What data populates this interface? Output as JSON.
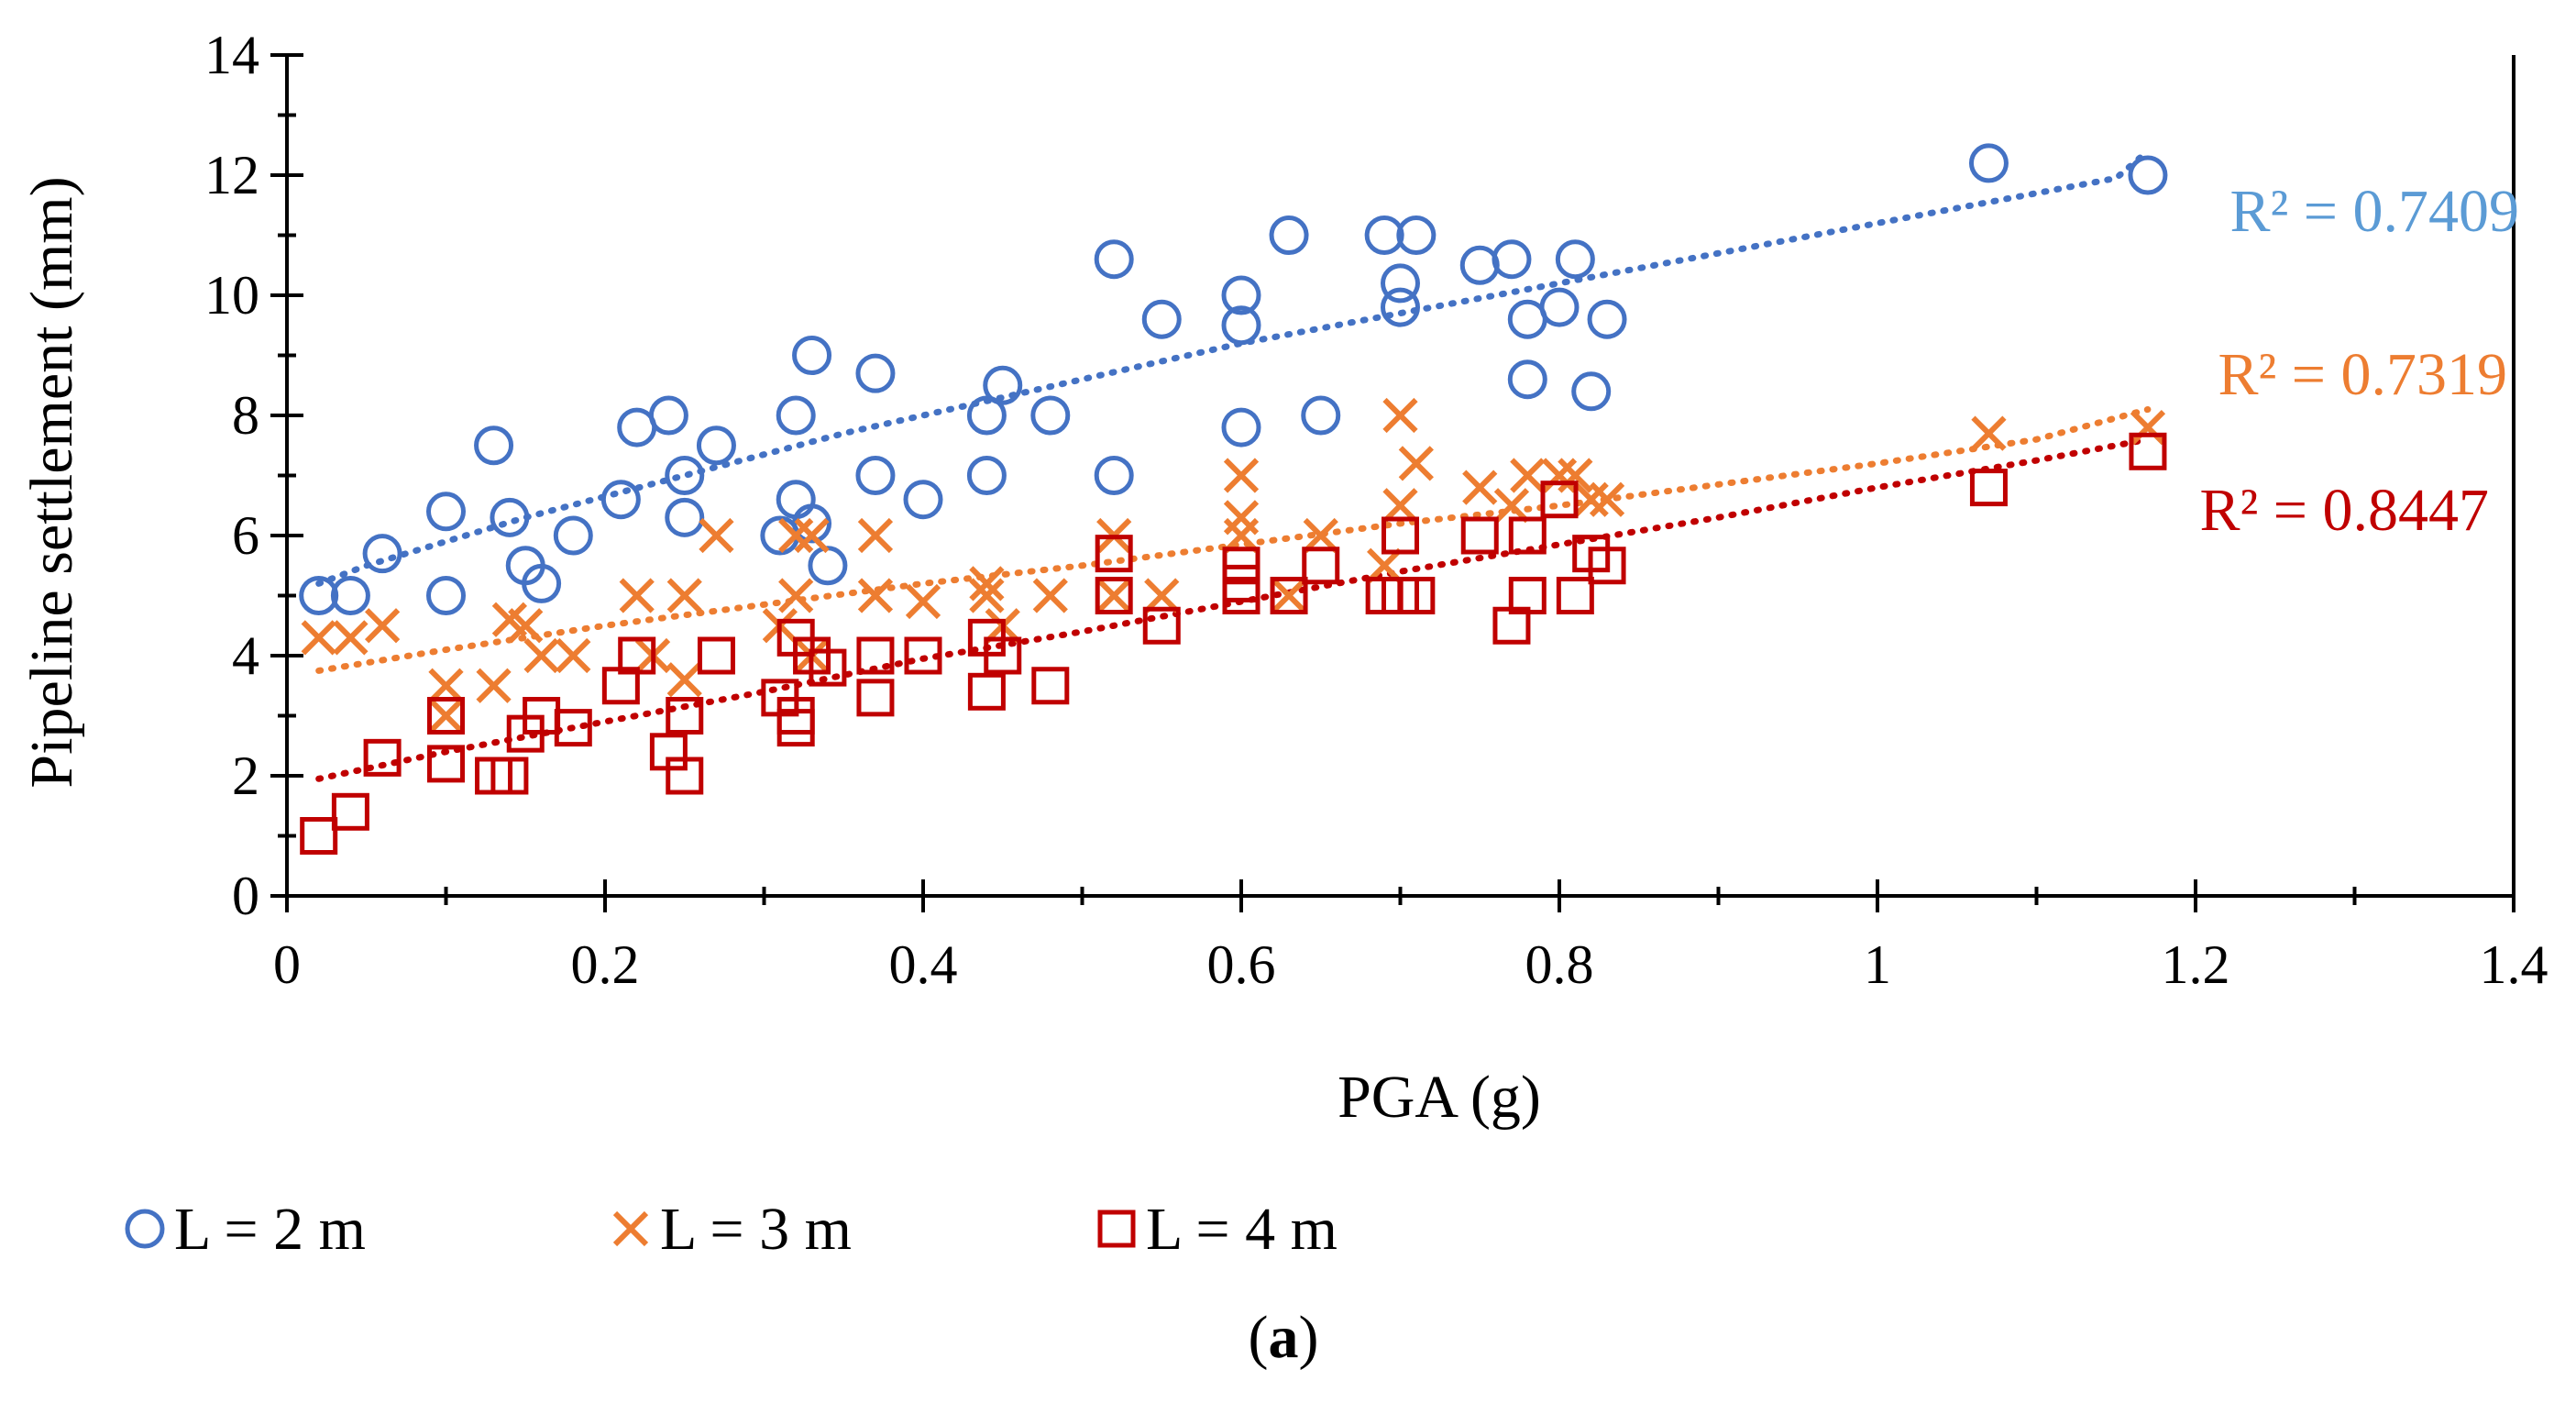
{
  "chart_data": {
    "type": "scatter",
    "title": "",
    "xlabel": "PGA (g)",
    "ylabel": "Pipeline settlement (mm)",
    "xlim": [
      0,
      1.4
    ],
    "ylim": [
      0,
      14
    ],
    "x_ticks": [
      "0",
      "0.2",
      "0.4",
      "0.6",
      "0.8",
      "1",
      "1.2",
      "1.4"
    ],
    "y_ticks": [
      "0",
      "2",
      "4",
      "6",
      "8",
      "10",
      "12",
      "14"
    ],
    "grid": false,
    "legend_position": "bottom",
    "caption_open": "(",
    "caption_letter": "a",
    "caption_close": ")",
    "series": [
      {
        "name": "L = 2 m",
        "marker": "circle",
        "color": "#4472C4",
        "r2_text": "R² = 0.7409",
        "r2_color": "#5B9BD5",
        "trend_x": [
          0.02,
          0.05,
          0.1,
          0.15,
          0.2,
          0.25,
          0.3,
          0.35,
          0.4,
          0.45,
          0.5,
          0.55,
          0.6,
          0.65,
          0.7,
          0.75,
          0.8,
          0.85,
          0.9,
          0.95,
          1.0,
          1.05,
          1.1,
          1.15,
          1.17
        ],
        "trend_y": [
          5.2,
          5.5,
          5.9,
          6.3,
          6.65,
          7.0,
          7.35,
          7.7,
          8.0,
          8.3,
          8.6,
          8.9,
          9.2,
          9.45,
          9.7,
          9.95,
          10.2,
          10.45,
          10.7,
          10.95,
          11.2,
          11.45,
          11.7,
          11.95,
          12.4
        ],
        "points": [
          [
            0.02,
            5.0
          ],
          [
            0.04,
            5.0
          ],
          [
            0.06,
            5.7
          ],
          [
            0.1,
            6.4
          ],
          [
            0.1,
            5.0
          ],
          [
            0.13,
            7.5
          ],
          [
            0.14,
            6.3
          ],
          [
            0.15,
            5.5
          ],
          [
            0.16,
            5.2
          ],
          [
            0.18,
            6.0
          ],
          [
            0.21,
            6.6
          ],
          [
            0.22,
            7.8
          ],
          [
            0.24,
            8.0
          ],
          [
            0.25,
            7.0
          ],
          [
            0.25,
            6.3
          ],
          [
            0.27,
            7.5
          ],
          [
            0.31,
            6.0
          ],
          [
            0.32,
            6.6
          ],
          [
            0.32,
            8.0
          ],
          [
            0.33,
            9.0
          ],
          [
            0.33,
            6.2
          ],
          [
            0.34,
            5.5
          ],
          [
            0.37,
            8.7
          ],
          [
            0.37,
            7.0
          ],
          [
            0.4,
            6.6
          ],
          [
            0.44,
            7.0
          ],
          [
            0.44,
            8.0
          ],
          [
            0.45,
            8.5
          ],
          [
            0.48,
            8.0
          ],
          [
            0.52,
            10.6
          ],
          [
            0.52,
            7.0
          ],
          [
            0.55,
            9.6
          ],
          [
            0.6,
            10.0
          ],
          [
            0.6,
            9.5
          ],
          [
            0.6,
            7.8
          ],
          [
            0.63,
            11.0
          ],
          [
            0.65,
            8.0
          ],
          [
            0.69,
            11.0
          ],
          [
            0.7,
            10.2
          ],
          [
            0.7,
            9.8
          ],
          [
            0.71,
            11.0
          ],
          [
            0.75,
            10.5
          ],
          [
            0.77,
            10.6
          ],
          [
            0.78,
            9.6
          ],
          [
            0.78,
            8.6
          ],
          [
            0.8,
            9.8
          ],
          [
            0.81,
            10.6
          ],
          [
            0.82,
            8.4
          ],
          [
            0.83,
            9.6
          ],
          [
            1.07,
            12.2
          ],
          [
            1.17,
            12.0
          ]
        ]
      },
      {
        "name": "L = 3 m",
        "marker": "x",
        "color": "#ED7D31",
        "r2_text": "R² = 0.7319",
        "r2_color": "#ED7D31",
        "trend_x": [
          0.02,
          0.1,
          0.2,
          0.3,
          0.4,
          0.5,
          0.6,
          0.7,
          0.8,
          0.9,
          1.0,
          1.1,
          1.17
        ],
        "trend_y": [
          3.75,
          4.1,
          4.5,
          4.85,
          5.2,
          5.5,
          5.85,
          6.2,
          6.5,
          6.85,
          7.2,
          7.6,
          8.1
        ],
        "points": [
          [
            0.02,
            4.3
          ],
          [
            0.04,
            4.3
          ],
          [
            0.06,
            4.5
          ],
          [
            0.1,
            3.5
          ],
          [
            0.1,
            3.0
          ],
          [
            0.13,
            3.5
          ],
          [
            0.14,
            4.6
          ],
          [
            0.15,
            4.5
          ],
          [
            0.16,
            4.0
          ],
          [
            0.18,
            4.0
          ],
          [
            0.22,
            5.0
          ],
          [
            0.23,
            4.0
          ],
          [
            0.25,
            5.0
          ],
          [
            0.25,
            3.6
          ],
          [
            0.27,
            6.0
          ],
          [
            0.31,
            4.5
          ],
          [
            0.32,
            5.0
          ],
          [
            0.32,
            6.0
          ],
          [
            0.33,
            6.0
          ],
          [
            0.33,
            4.0
          ],
          [
            0.37,
            6.0
          ],
          [
            0.37,
            5.0
          ],
          [
            0.4,
            4.9
          ],
          [
            0.44,
            5.0
          ],
          [
            0.44,
            5.2
          ],
          [
            0.45,
            4.5
          ],
          [
            0.48,
            5.0
          ],
          [
            0.52,
            6.0
          ],
          [
            0.52,
            5.0
          ],
          [
            0.55,
            5.0
          ],
          [
            0.6,
            7.0
          ],
          [
            0.6,
            6.3
          ],
          [
            0.6,
            6.0
          ],
          [
            0.63,
            5.0
          ],
          [
            0.65,
            6.0
          ],
          [
            0.69,
            5.5
          ],
          [
            0.7,
            8.0
          ],
          [
            0.7,
            6.5
          ],
          [
            0.71,
            7.2
          ],
          [
            0.75,
            6.8
          ],
          [
            0.77,
            6.5
          ],
          [
            0.78,
            7.0
          ],
          [
            0.8,
            7.0
          ],
          [
            0.81,
            7.0
          ],
          [
            0.82,
            6.6
          ],
          [
            0.83,
            6.6
          ],
          [
            1.07,
            7.7
          ],
          [
            1.17,
            7.8
          ]
        ]
      },
      {
        "name": "L = 4 m",
        "marker": "square",
        "color": "#C00000",
        "r2_text": "R² = 0.8447",
        "r2_color": "#C00000",
        "trend_x": [
          0.02,
          0.1,
          0.2,
          0.3,
          0.4,
          0.5,
          0.6,
          0.7,
          0.8,
          0.9,
          1.0,
          1.1,
          1.17
        ],
        "trend_y": [
          1.95,
          2.4,
          2.9,
          3.4,
          3.95,
          4.4,
          4.9,
          5.4,
          5.85,
          6.3,
          6.8,
          7.25,
          7.6
        ],
        "points": [
          [
            0.02,
            1.0
          ],
          [
            0.04,
            1.4
          ],
          [
            0.06,
            2.3
          ],
          [
            0.1,
            3.0
          ],
          [
            0.1,
            2.2
          ],
          [
            0.13,
            2.0
          ],
          [
            0.14,
            2.0
          ],
          [
            0.15,
            2.7
          ],
          [
            0.16,
            3.0
          ],
          [
            0.18,
            2.8
          ],
          [
            0.21,
            3.5
          ],
          [
            0.22,
            4.0
          ],
          [
            0.24,
            2.4
          ],
          [
            0.25,
            3.0
          ],
          [
            0.25,
            2.0
          ],
          [
            0.27,
            4.0
          ],
          [
            0.31,
            3.3
          ],
          [
            0.32,
            4.3
          ],
          [
            0.32,
            3.0
          ],
          [
            0.32,
            2.8
          ],
          [
            0.33,
            4.0
          ],
          [
            0.34,
            3.8
          ],
          [
            0.37,
            4.0
          ],
          [
            0.37,
            3.3
          ],
          [
            0.4,
            4.0
          ],
          [
            0.44,
            4.3
          ],
          [
            0.44,
            3.4
          ],
          [
            0.45,
            4.0
          ],
          [
            0.48,
            3.5
          ],
          [
            0.52,
            5.7
          ],
          [
            0.52,
            5.0
          ],
          [
            0.55,
            4.5
          ],
          [
            0.6,
            5.5
          ],
          [
            0.6,
            5.2
          ],
          [
            0.6,
            5.0
          ],
          [
            0.63,
            5.0
          ],
          [
            0.65,
            5.5
          ],
          [
            0.69,
            5.0
          ],
          [
            0.7,
            6.0
          ],
          [
            0.7,
            5.0
          ],
          [
            0.71,
            5.0
          ],
          [
            0.75,
            6.0
          ],
          [
            0.77,
            4.5
          ],
          [
            0.78,
            6.0
          ],
          [
            0.78,
            5.0
          ],
          [
            0.8,
            6.6
          ],
          [
            0.81,
            5.0
          ],
          [
            0.82,
            5.7
          ],
          [
            0.83,
            5.5
          ],
          [
            1.07,
            6.8
          ],
          [
            1.17,
            7.4
          ]
        ]
      }
    ]
  }
}
